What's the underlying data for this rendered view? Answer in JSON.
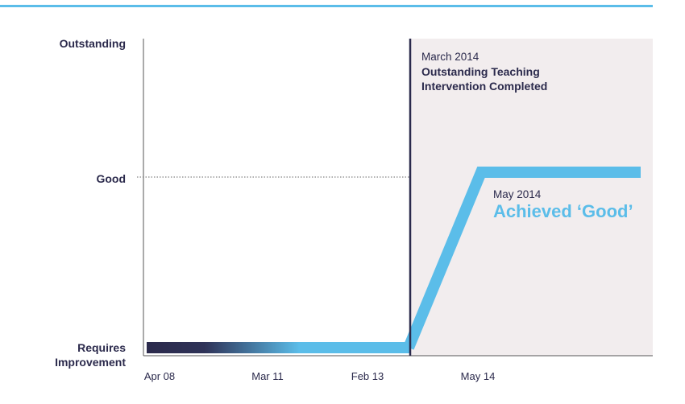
{
  "chart_data": {
    "type": "line",
    "title": "",
    "xlabel": "",
    "ylabel": "",
    "y_levels": [
      "Requires Improvement",
      "Good",
      "Outstanding"
    ],
    "y_tick_labels": {
      "outstanding": "Outstanding",
      "good": "Good",
      "requires_1": "Requires",
      "requires_2": "Improvement"
    },
    "x_tick_labels": [
      "Apr 08",
      "Mar 11",
      "Feb 13",
      "May 14"
    ],
    "series": [
      {
        "color": "#5bbde9",
        "points": [
          {
            "x": "2008-04",
            "y": "Requires Improvement"
          },
          {
            "x": "2014-03",
            "y": "Requires Improvement"
          },
          {
            "x": "2014-05",
            "y": "Good"
          },
          {
            "x": "2016-01",
            "y": "Good"
          }
        ]
      }
    ],
    "reference_line": {
      "y": "Good",
      "style": "dotted"
    },
    "event_line": {
      "x": "2014-03",
      "color": "#2b2a4c"
    },
    "annotations": {
      "march_date": "March 2014",
      "march_line1": "Outstanding Teaching",
      "march_line2": "Intervention Completed",
      "may_date": "May 2014",
      "may_result": "Achieved ‘Good’"
    },
    "colors": {
      "accent": "#5bbde9",
      "dark": "#2b2a4c",
      "shade": "#f2edee",
      "axis": "#555555"
    },
    "grid": false
  }
}
